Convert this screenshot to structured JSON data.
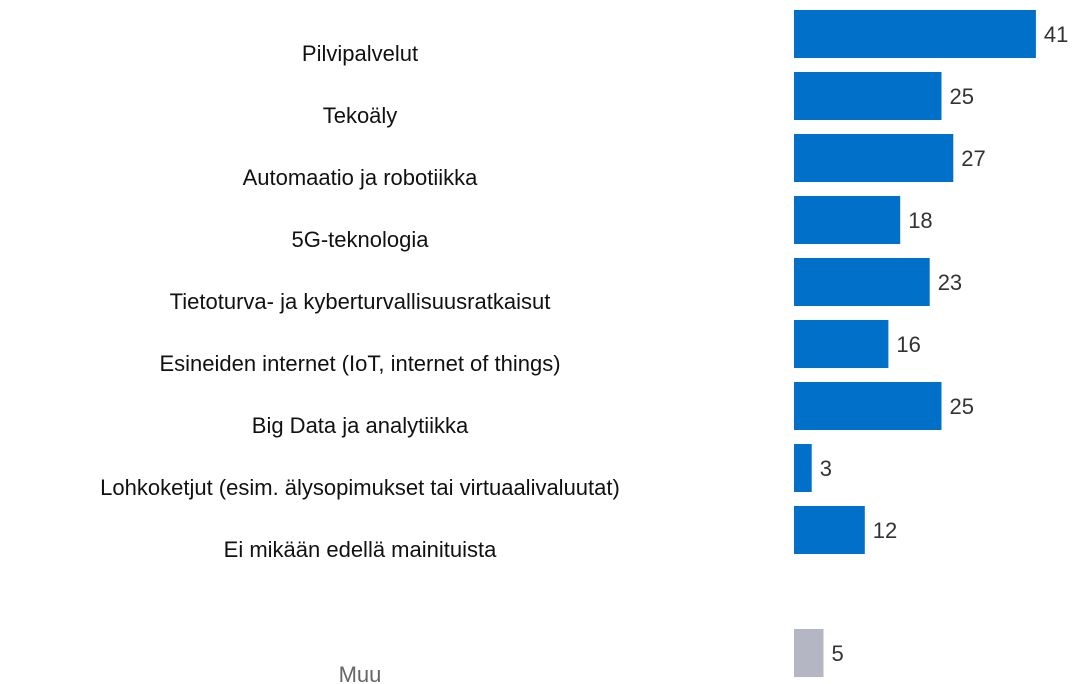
{
  "chart_data": {
    "type": "bar",
    "orientation": "horizontal",
    "categories": [
      "Pilvipalvelut",
      "Tekoäly",
      "Automaatio ja robotiikka",
      "5G-teknologia",
      "Tietoturva- ja kyberturvallisuusratkaisut",
      "Esineiden internet (IoT, internet of things)",
      "Big Data ja analytiikka",
      "Lohkoketjut (esim. älysopimukset tai virtuaalivaluutat)",
      "Ei mikään edellä mainituista",
      "Muu"
    ],
    "values": [
      41,
      25,
      27,
      18,
      23,
      16,
      25,
      3,
      12,
      5
    ],
    "colors": [
      "#0070c8",
      "#0070c8",
      "#0070c8",
      "#0070c8",
      "#0070c8",
      "#0070c8",
      "#0070c8",
      "#0070c8",
      "#0070c8",
      "#b4b7c3"
    ]
  }
}
